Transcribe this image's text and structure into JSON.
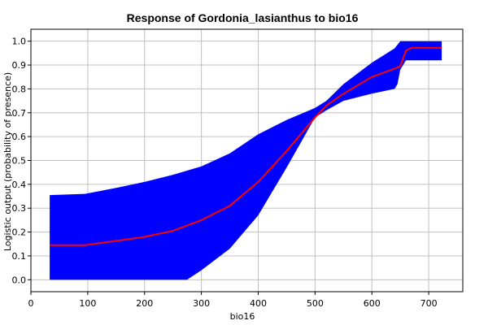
{
  "chart_data": {
    "type": "area",
    "title": "Response of Gordonia_lasianthus to bio16",
    "xlabel": "bio16",
    "ylabel": "Logistic output (probability of presence)",
    "xlim": [
      0,
      760
    ],
    "ylim": [
      -0.05,
      1.05
    ],
    "x_ticks": [
      0,
      100,
      200,
      300,
      400,
      500,
      600,
      700
    ],
    "y_ticks": [
      0.0,
      0.1,
      0.2,
      0.3,
      0.4,
      0.5,
      0.6,
      0.7,
      0.8,
      0.9,
      1.0
    ],
    "grid": true,
    "colors": {
      "band": "#0000ff",
      "line": "#ff0000",
      "grid": "#c0c0c0"
    },
    "series": [
      {
        "role": "mean",
        "x": [
          33,
          95,
          150,
          200,
          250,
          300,
          350,
          400,
          450,
          500,
          520,
          550,
          600,
          640,
          650,
          660,
          670,
          700,
          723
        ],
        "values": [
          0.145,
          0.145,
          0.163,
          0.18,
          0.205,
          0.25,
          0.31,
          0.41,
          0.54,
          0.68,
          0.73,
          0.78,
          0.85,
          0.885,
          0.895,
          0.96,
          0.972,
          0.972,
          0.972
        ]
      },
      {
        "role": "upper",
        "x": [
          33,
          95,
          150,
          200,
          250,
          300,
          350,
          400,
          450,
          500,
          520,
          550,
          600,
          640,
          650,
          700,
          723
        ],
        "values": [
          0.355,
          0.36,
          0.385,
          0.41,
          0.44,
          0.475,
          0.53,
          0.61,
          0.67,
          0.72,
          0.75,
          0.82,
          0.91,
          0.97,
          1.0,
          1.0,
          1.0
        ]
      },
      {
        "role": "lower",
        "x": [
          33,
          275,
          300,
          350,
          400,
          450,
          500,
          520,
          550,
          600,
          640,
          645,
          650,
          660,
          700,
          723
        ],
        "values": [
          0.0,
          0.0,
          0.04,
          0.13,
          0.27,
          0.47,
          0.68,
          0.71,
          0.75,
          0.78,
          0.8,
          0.82,
          0.88,
          0.92,
          0.92,
          0.92
        ]
      }
    ]
  }
}
